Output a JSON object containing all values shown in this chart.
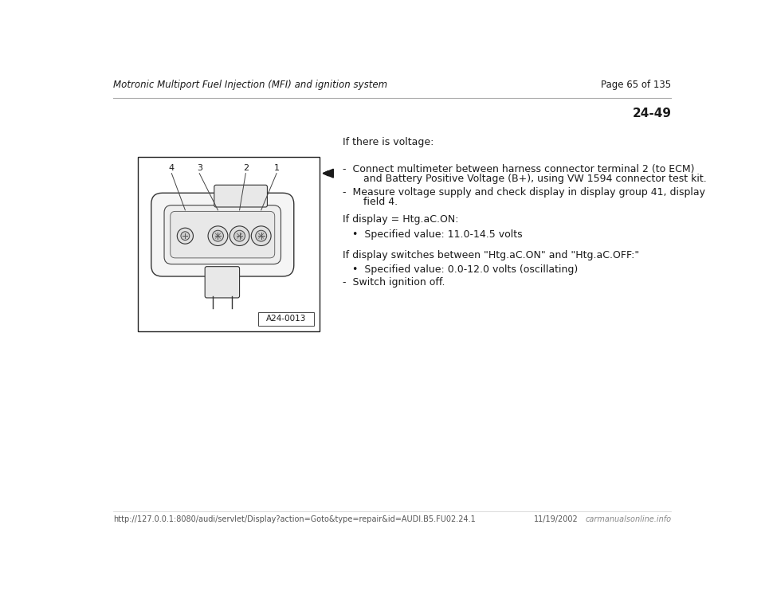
{
  "bg_color": "#ffffff",
  "header_left": "Motronic Multiport Fuel Injection (MFI) and ignition system",
  "header_right": "Page 65 of 135",
  "section_number": "24-49",
  "footer_url": "http://127.0.0.1:8080/audi/servlet/Display?action=Goto&type=repair&id=AUDI.B5.FU02.24.1",
  "footer_date": "11/19/2002",
  "footer_logo": "carmanualsonline.info",
  "intro_text": "If there is voltage:",
  "condition1": "If display = Htg.aC.ON:",
  "bullet3": "•  Specified value: 11.0-14.5 volts",
  "condition2": "If display switches between \"Htg.aC.ON\" and \"Htg.aC.OFF:\"",
  "bullet4": "•  Specified value: 0.0-12.0 volts (oscillating)",
  "bullet5": "-  Switch ignition off.",
  "diagram_label": "A24-0013",
  "font_size_header": 8.5,
  "font_size_body": 9.0,
  "font_size_section": 11,
  "text_color": "#1a1a1a",
  "line_color": "#555555",
  "dash_line1a": "-  Connect multimeter between harness connector terminal 2 (to ECM)",
  "dash_line1b": "   and Battery Positive Voltage (B+), using VW 1594 connector test kit.",
  "dash_line2a": "-  Measure voltage supply and check display in display group 41, display",
  "dash_line2b": "   field 4."
}
